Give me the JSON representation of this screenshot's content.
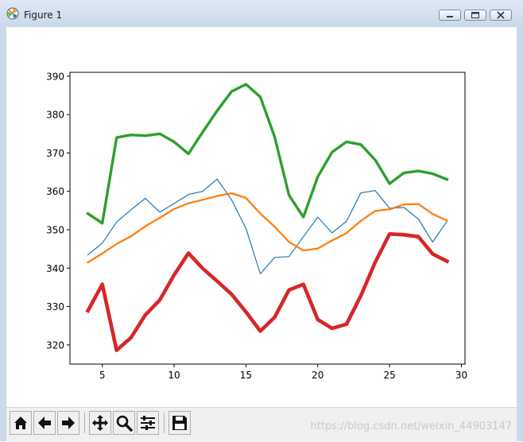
{
  "window": {
    "title": "Figure 1",
    "buttons": [
      "minimize-icon",
      "maximize-icon",
      "close-icon"
    ],
    "watermark": "https://blog.csdn.net/weixin_44903147"
  },
  "toolbar": {
    "icons": [
      "home-icon",
      "back-arrow-icon",
      "forward-arrow-icon",
      "pan-move-icon",
      "zoom-magnifier-icon",
      "configure-subplots-icon",
      "save-floppy-icon"
    ]
  },
  "chart_data": {
    "type": "line",
    "title": "",
    "xlabel": "",
    "ylabel": "",
    "xlim": [
      2.75,
      30.25
    ],
    "ylim": [
      315,
      391
    ],
    "xticks": [
      5,
      10,
      15,
      20,
      25,
      30
    ],
    "yticks": [
      320,
      330,
      340,
      350,
      360,
      370,
      380,
      390
    ],
    "grid": false,
    "x": [
      4,
      5,
      6,
      7,
      8,
      9,
      10,
      11,
      12,
      13,
      14,
      15,
      16,
      17,
      18,
      19,
      20,
      21,
      22,
      23,
      24,
      25,
      26,
      27,
      28,
      29
    ],
    "series": [
      {
        "color": "#1f77b4",
        "linewidth": "thin",
        "values": [
          343.5,
          346.5,
          352,
          355.2,
          358.2,
          354.6,
          356.8,
          359.2,
          360,
          363.2,
          357.8,
          350.4,
          338.5,
          342.8,
          343,
          348.2,
          353.3,
          349.2,
          352.2,
          359.6,
          360.2,
          355.6,
          355.8,
          352.8,
          346.8,
          352.2
        ]
      },
      {
        "color": "#ff7f0e",
        "linewidth": "medium",
        "values": [
          341.5,
          343.8,
          346.3,
          348.3,
          350.9,
          353.1,
          355.4,
          356.9,
          357.8,
          358.8,
          359.5,
          358.3,
          354.2,
          350.8,
          346.8,
          344.6,
          345.1,
          347.2,
          349.1,
          352.3,
          354.9,
          355.3,
          356.6,
          356.7,
          354.1,
          352.4
        ]
      },
      {
        "color": "#2ca02c",
        "linewidth": "thick",
        "values": [
          354.2,
          351.7,
          374,
          374.7,
          374.5,
          375,
          372.9,
          369.8,
          375.5,
          381,
          386,
          387.9,
          384.6,
          374.2,
          359,
          353.3,
          363.8,
          370.2,
          372.9,
          372.2,
          368.2,
          362,
          364.8,
          365.3,
          364.6,
          363.1
        ]
      },
      {
        "color": "#d62728",
        "linewidth": "thickest",
        "values": [
          328.9,
          335.8,
          318.6,
          321.9,
          327.8,
          331.7,
          338.2,
          343.9,
          339.9,
          336.6,
          333.2,
          328.6,
          323.6,
          327.2,
          334.3,
          335.8,
          326.6,
          324.3,
          325.4,
          332.8,
          341.5,
          348.9,
          348.7,
          348.2,
          343.7,
          341.8
        ]
      }
    ]
  }
}
